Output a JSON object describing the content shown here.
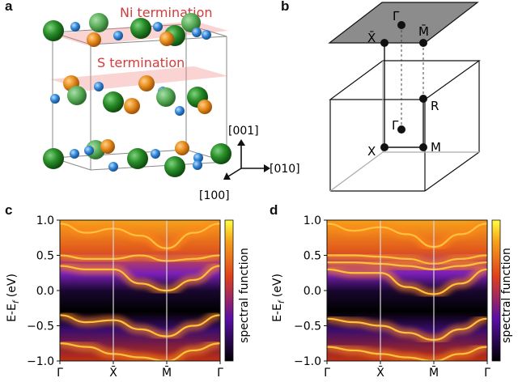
{
  "panels": {
    "a": {
      "label": "a",
      "ni_termination": "Ni termination",
      "s_termination": "S termination",
      "axes": [
        "[001]",
        "[010]",
        "[100]"
      ]
    },
    "b": {
      "label": "b",
      "points": [
        "Γ̄",
        "X̄",
        "M̄",
        "R",
        "Γ",
        "X",
        "M"
      ]
    },
    "c": {
      "label": "c",
      "ylabel": "E-E",
      "ylabel_sub": "f",
      "ylabel_unit": " (eV)",
      "colorbar_label": "spectral function"
    },
    "d": {
      "label": "d",
      "ylabel": "E-E",
      "ylabel_sub": "f",
      "ylabel_unit": " (eV)",
      "colorbar_label": "spectral function"
    }
  },
  "colors": {
    "ni_atom": "#1e7a1e",
    "s_atom": "#e58a1a",
    "o_atom": "#2f86d8",
    "termination_plane": "#f08080",
    "surface_bz": "#8c8c8c"
  },
  "chart_data": [
    {
      "type": "heatmap",
      "panel": "c",
      "colormap": "gnuplot",
      "ylabel": "E-Ef (eV)",
      "ylim": [
        -1.0,
        1.0
      ],
      "yticks": [
        -1.0,
        -0.5,
        0.0,
        0.5,
        1.0
      ],
      "ytick_labels": [
        "−1.0",
        "−0.5",
        "0.0",
        "0.5",
        "1.0"
      ],
      "x_kpath": [
        "Γ̄",
        "X̄",
        "M̄",
        "Γ̄"
      ],
      "x_kpath_pos": [
        0,
        1,
        2,
        3
      ],
      "colorbar_label": "spectral function",
      "bands": [
        {
          "x": [
            0,
            0.5,
            1.0,
            1.5,
            2.0,
            2.5,
            3.0
          ],
          "y": [
            0.5,
            0.45,
            0.45,
            0.5,
            0.42,
            0.45,
            0.5
          ]
        },
        {
          "x": [
            0,
            0.5,
            1.0,
            1.5,
            2.0,
            2.5,
            3.0
          ],
          "y": [
            0.95,
            0.82,
            0.88,
            0.78,
            0.6,
            0.82,
            0.95
          ]
        },
        {
          "x": [
            0,
            0.5,
            1.0,
            1.5,
            2.0,
            2.5,
            3.0
          ],
          "y": [
            0.35,
            0.3,
            0.3,
            0.1,
            0.0,
            0.15,
            0.35
          ]
        },
        {
          "x": [
            0,
            0.5,
            1.0,
            1.5,
            2.0,
            2.5,
            3.0
          ],
          "y": [
            -0.35,
            -0.45,
            -0.42,
            -0.55,
            -0.65,
            -0.5,
            -0.35
          ]
        },
        {
          "x": [
            0,
            0.5,
            1.0,
            1.5,
            2.0,
            2.5,
            3.0
          ],
          "y": [
            -0.75,
            -0.8,
            -0.9,
            -0.95,
            -1.0,
            -0.85,
            -0.75
          ]
        }
      ]
    },
    {
      "type": "heatmap",
      "panel": "d",
      "colormap": "gnuplot",
      "ylabel": "E-Ef (eV)",
      "ylim": [
        -1.0,
        1.0
      ],
      "yticks": [
        -1.0,
        -0.5,
        0.0,
        0.5,
        1.0
      ],
      "ytick_labels": [
        "−1.0",
        "−0.5",
        "0.0",
        "0.5",
        "1.0"
      ],
      "x_kpath": [
        "Γ̄",
        "X̄",
        "M̄",
        "Γ̄"
      ],
      "x_kpath_pos": [
        0,
        1,
        2,
        3
      ],
      "colorbar_label": "spectral function",
      "bands": [
        {
          "x": [
            0,
            0.5,
            1.0,
            1.5,
            2.0,
            2.5,
            3.0
          ],
          "y": [
            0.5,
            0.5,
            0.48,
            0.45,
            0.38,
            0.45,
            0.5
          ]
        },
        {
          "x": [
            0,
            0.5,
            1.0,
            1.5,
            2.0,
            2.5,
            3.0
          ],
          "y": [
            0.4,
            0.4,
            0.38,
            0.35,
            0.3,
            0.35,
            0.4
          ]
        },
        {
          "x": [
            0,
            0.5,
            1.0,
            1.5,
            2.0,
            2.5,
            3.0
          ],
          "y": [
            0.95,
            0.85,
            0.9,
            0.8,
            0.62,
            0.8,
            0.95
          ]
        },
        {
          "x": [
            0,
            0.5,
            1.0,
            1.5,
            2.0,
            2.5,
            3.0
          ],
          "y": [
            0.3,
            0.25,
            0.25,
            0.05,
            -0.05,
            0.1,
            0.3
          ]
        },
        {
          "x": [
            0,
            0.5,
            1.0,
            1.5,
            2.0,
            2.5,
            3.0
          ],
          "y": [
            -0.4,
            -0.45,
            -0.5,
            -0.6,
            -0.7,
            -0.55,
            -0.4
          ]
        },
        {
          "x": [
            0,
            0.5,
            1.0,
            1.5,
            2.0,
            2.5,
            3.0
          ],
          "y": [
            -0.8,
            -0.85,
            -0.9,
            -0.95,
            -1.0,
            -0.9,
            -0.8
          ]
        }
      ]
    }
  ]
}
